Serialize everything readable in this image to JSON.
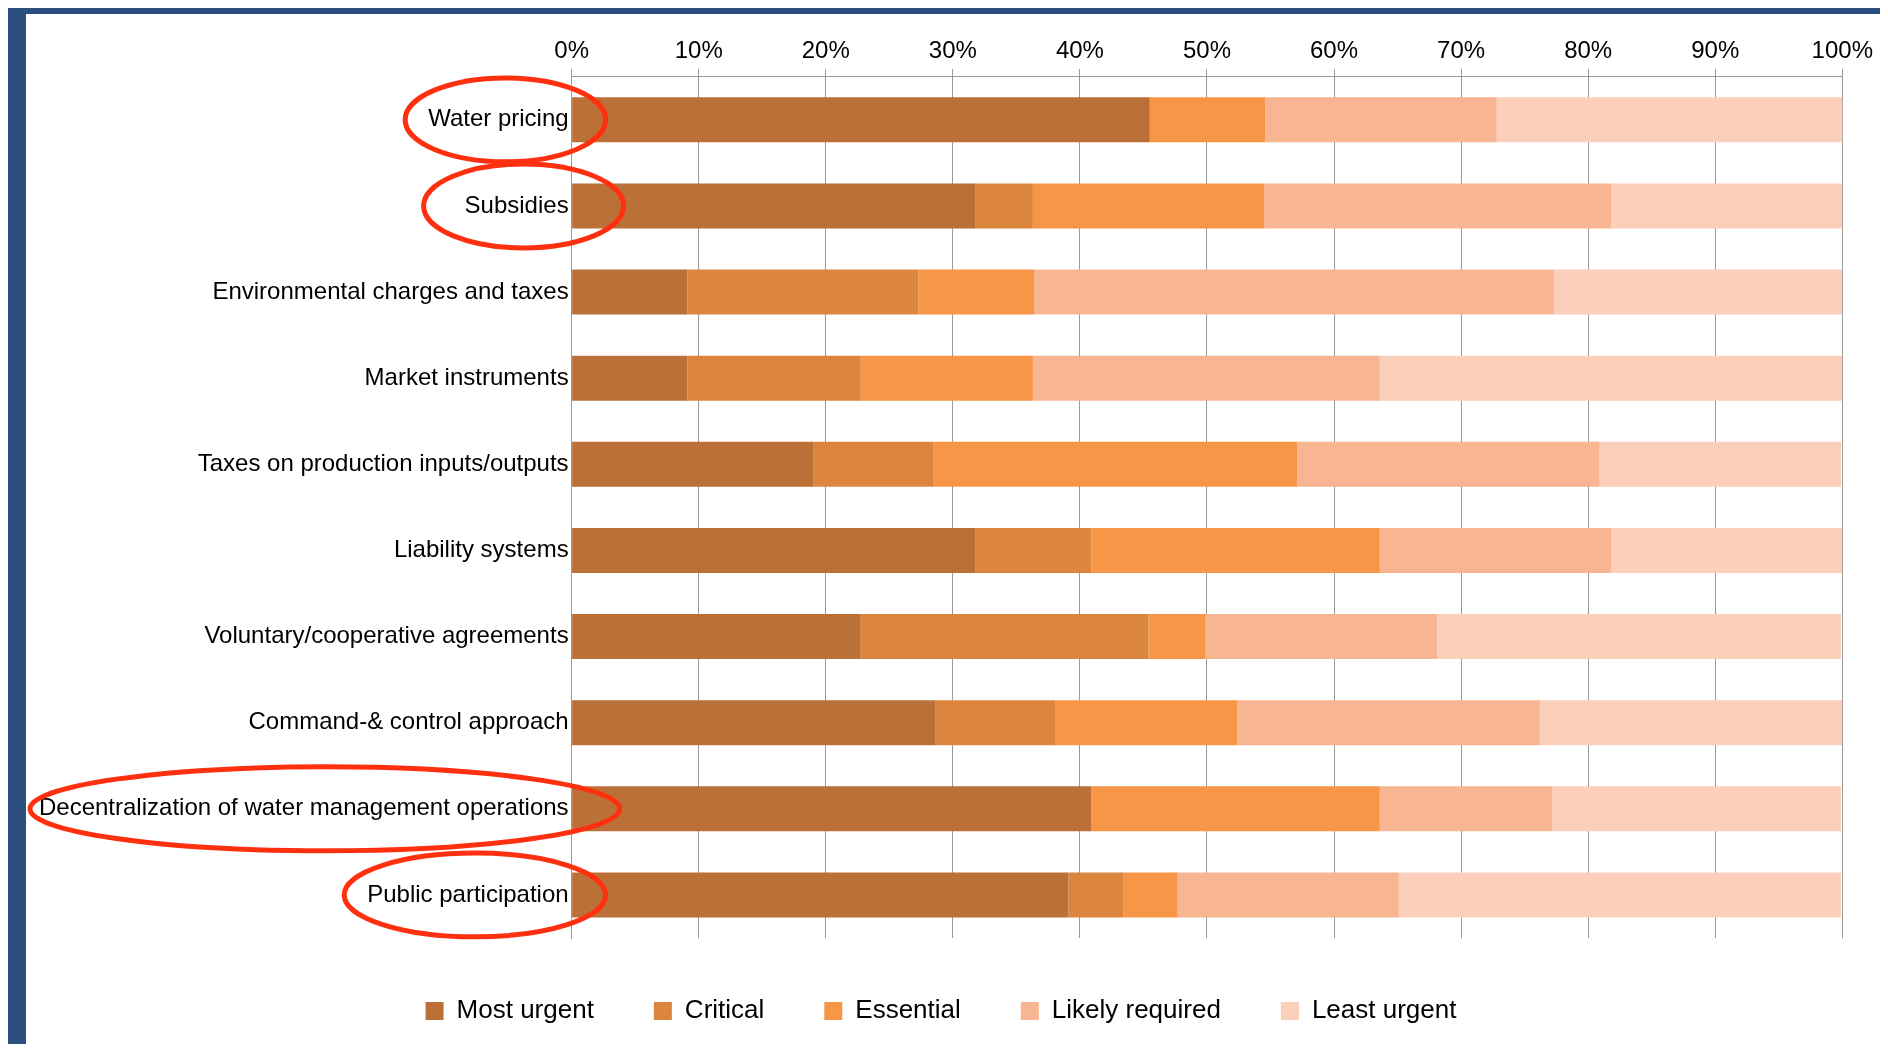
{
  "chart_data": {
    "type": "bar",
    "orientation": "horizontal",
    "stacked": true,
    "categories": [
      "Water pricing",
      "Subsidies",
      "Environmental charges and taxes",
      "Market instruments",
      "Taxes on production inputs/outputs",
      "Liability systems",
      "Voluntary/cooperative agreements",
      "Command-& control approach",
      "Decentralization of water management operations",
      "Public participation"
    ],
    "series": [
      {
        "name": "Most urgent",
        "color": "#ba7036",
        "values": [
          45.5,
          31.8,
          9.1,
          9.1,
          19.0,
          31.8,
          22.7,
          28.6,
          40.9,
          39.1
        ]
      },
      {
        "name": "Critical",
        "color": "#dc853e",
        "values": [
          0,
          4.5,
          18.2,
          13.6,
          9.5,
          9.1,
          22.7,
          9.5,
          0,
          4.3
        ]
      },
      {
        "name": "Essential",
        "color": "#f79646",
        "values": [
          9.1,
          18.2,
          9.1,
          13.6,
          28.6,
          22.7,
          4.5,
          14.3,
          22.7,
          4.3
        ]
      },
      {
        "name": "Likely required",
        "color": "#f8b592",
        "values": [
          18.2,
          27.3,
          40.9,
          27.3,
          23.8,
          18.2,
          18.2,
          23.8,
          13.6,
          17.4
        ]
      },
      {
        "name": "Least urgent",
        "color": "#fbcfb9",
        "values": [
          27.3,
          18.2,
          22.7,
          36.4,
          19.0,
          18.2,
          31.8,
          23.8,
          22.7,
          34.8
        ]
      }
    ],
    "xlim": [
      0,
      100
    ],
    "xticks": [
      {
        "value": 0,
        "label": "0%"
      },
      {
        "value": 10,
        "label": "10%"
      },
      {
        "value": 20,
        "label": "20%"
      },
      {
        "value": 30,
        "label": "30%"
      },
      {
        "value": 40,
        "label": "40%"
      },
      {
        "value": 50,
        "label": "50%"
      },
      {
        "value": 60,
        "label": "60%"
      },
      {
        "value": 70,
        "label": "70%"
      },
      {
        "value": 80,
        "label": "80%"
      },
      {
        "value": 90,
        "label": "90%"
      },
      {
        "value": 100,
        "label": "100%"
      }
    ],
    "grid": "x",
    "legend": "bottom"
  }
}
